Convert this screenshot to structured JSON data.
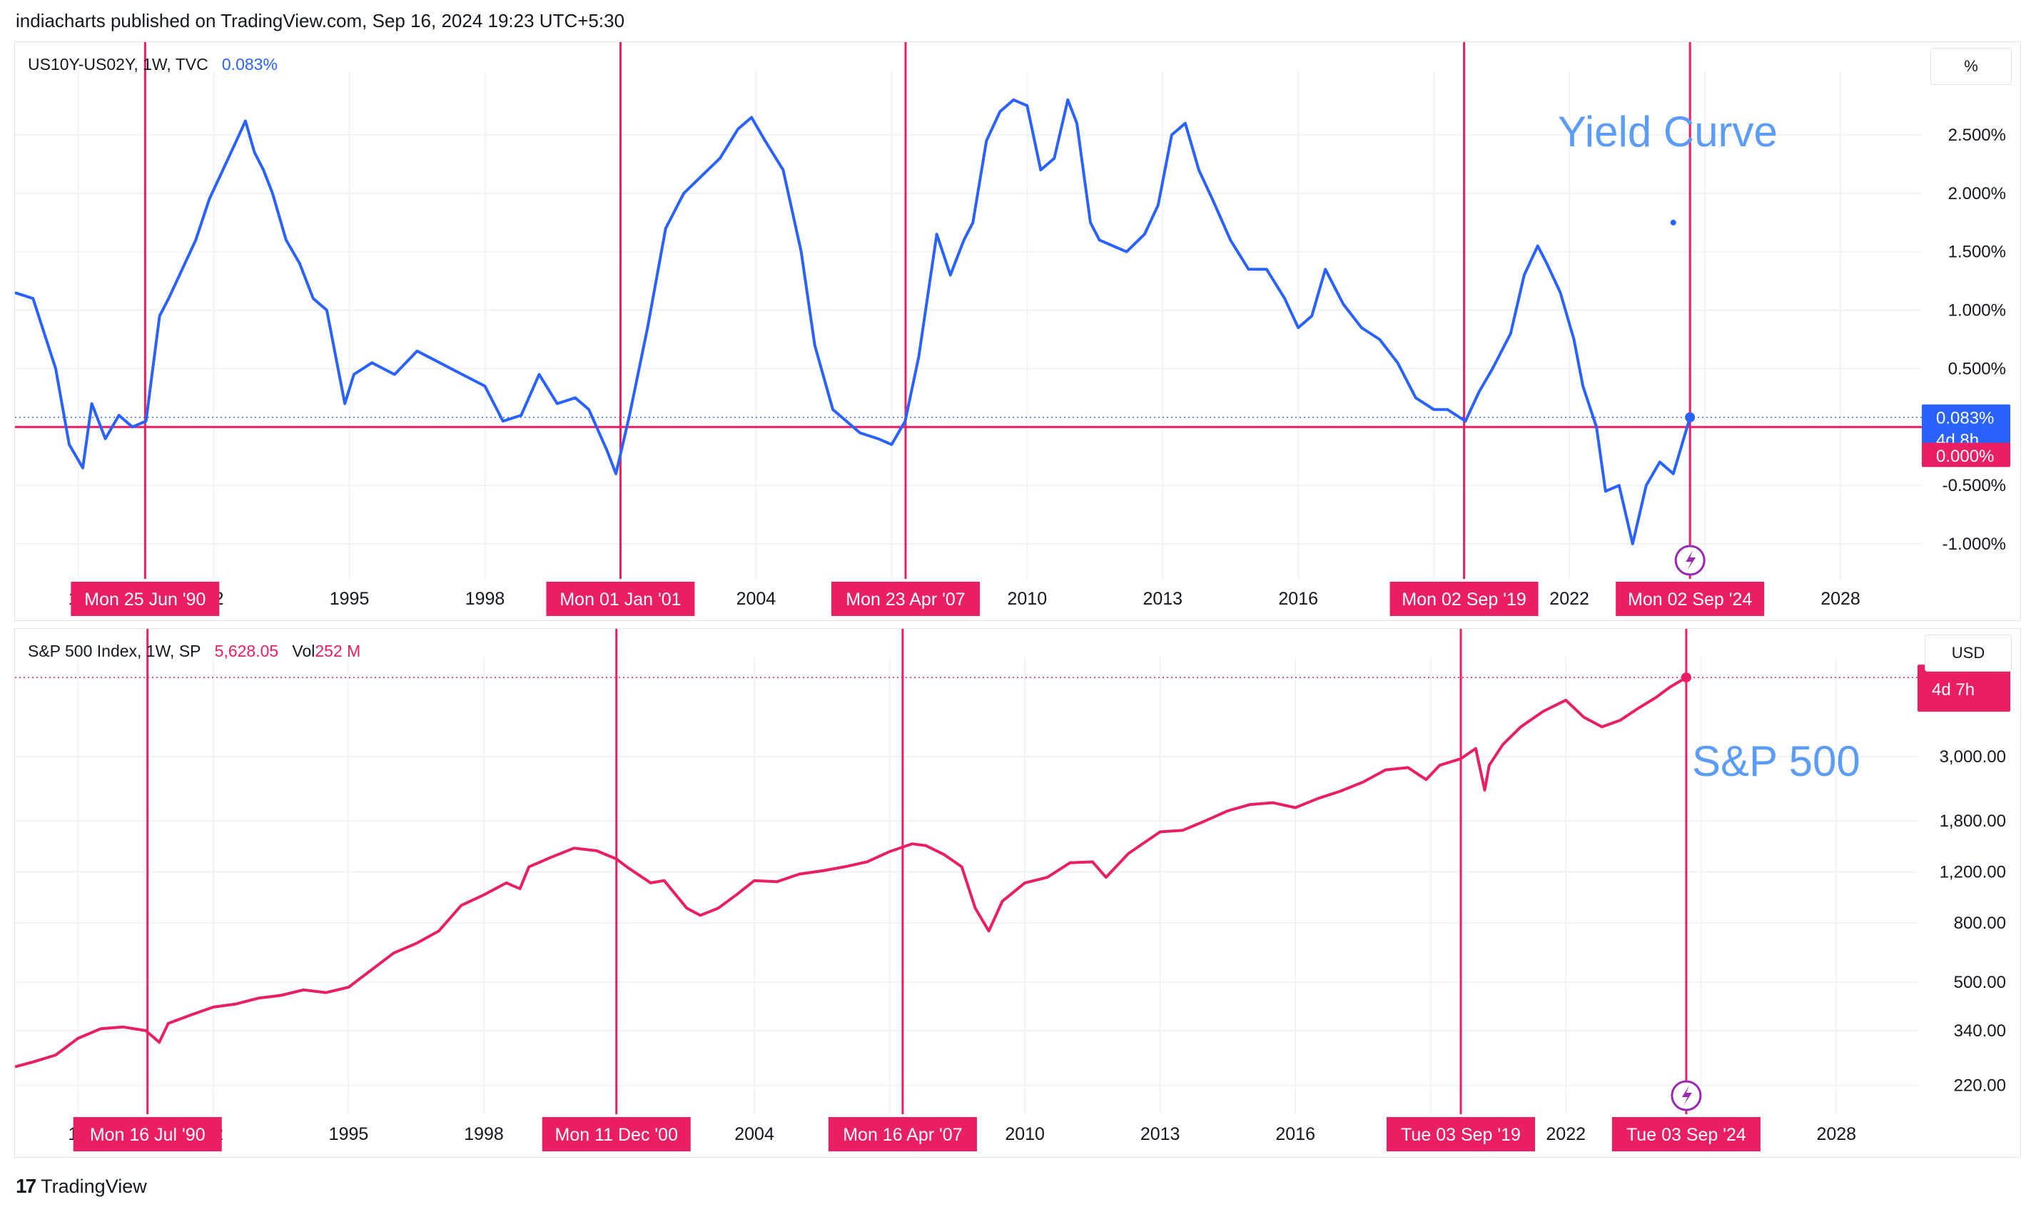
{
  "header": {
    "text": "indiacharts published on TradingView.com, Sep 16, 2024 19:23 UTC+5:30"
  },
  "footer": {
    "brand": "TradingView",
    "logo_icon": "tradingview-logo-icon"
  },
  "colors": {
    "blue": "#2962ff",
    "red": "#e91e63",
    "grid": "#f0f3fa",
    "annotation": "#5b9cf6",
    "purple": "#9c27b0"
  },
  "chart_data": [
    {
      "type": "line",
      "legend": {
        "symbol": "US10Y-US02Y, 1W, TVC",
        "value": "0.083%"
      },
      "unit_label": "%",
      "annotation": "Yield Curve",
      "y_scale": "linear",
      "ylim": [
        -1.3,
        3.05
      ],
      "xlim": [
        1987.6,
        2029.8
      ],
      "x_ticks": [
        "19",
        "92",
        "1995",
        "1998",
        "2001",
        "2004",
        "2007",
        "2010",
        "2013",
        "2016",
        "2019",
        "2022",
        "2025",
        "2028"
      ],
      "x_tick_values": [
        1989,
        1992,
        1995,
        1998,
        2001,
        2004,
        2007,
        2010,
        2013,
        2016,
        2019,
        2022,
        2025,
        2028
      ],
      "y_ticks": [
        "2.500%",
        "2.000%",
        "1.500%",
        "1.000%",
        "0.500%",
        "-0.500%",
        "-1.000%"
      ],
      "y_tick_values": [
        2.5,
        2.0,
        1.5,
        1.0,
        0.5,
        -0.5,
        -1.0
      ],
      "price_labels": [
        {
          "text": "0.083%",
          "sub": "4d 8h",
          "value": 0.083,
          "color": "#2962ff"
        },
        {
          "text": "0.000%",
          "value": 0.0,
          "color": "#e91e63"
        }
      ],
      "horizontal_line": 0.0,
      "vertical_lines": [
        {
          "x": 1990.48,
          "label": "Mon 25 Jun '90"
        },
        {
          "x": 2001.0,
          "label": "Mon 01 Jan '01"
        },
        {
          "x": 2007.31,
          "label": "Mon 23 Apr '07"
        },
        {
          "x": 2019.67,
          "label": "Mon 02 Sep '19"
        },
        {
          "x": 2024.67,
          "label": "Mon 02 Sep '24"
        }
      ],
      "series": [
        {
          "color": "#2962ff",
          "x": [
            1987.6,
            1988.0,
            1988.5,
            1988.8,
            1989.1,
            1989.3,
            1989.6,
            1989.9,
            1990.2,
            1990.5,
            1990.8,
            1991.0,
            1991.3,
            1991.6,
            1991.9,
            1992.2,
            1992.5,
            1992.7,
            1992.9,
            1993.1,
            1993.3,
            1993.6,
            1993.9,
            1994.2,
            1994.5,
            1994.9,
            1995.1,
            1995.5,
            1996.0,
            1996.5,
            1997.0,
            1997.5,
            1998.0,
            1998.4,
            1998.8,
            1999.2,
            1999.6,
            2000.0,
            2000.3,
            2000.7,
            2000.9,
            2001.2,
            2001.6,
            2002.0,
            2002.4,
            2002.8,
            2003.2,
            2003.6,
            2003.9,
            2004.2,
            2004.6,
            2005.0,
            2005.3,
            2005.7,
            2006.0,
            2006.3,
            2006.7,
            2007.0,
            2007.3,
            2007.6,
            2008.0,
            2008.3,
            2008.6,
            2008.8,
            2009.1,
            2009.4,
            2009.7,
            2010.0,
            2010.3,
            2010.6,
            2010.9,
            2011.1,
            2011.4,
            2011.6,
            2011.9,
            2012.2,
            2012.6,
            2012.9,
            2013.2,
            2013.5,
            2013.8,
            2014.1,
            2014.5,
            2014.9,
            2015.3,
            2015.7,
            2016.0,
            2016.3,
            2016.6,
            2017.0,
            2017.4,
            2017.8,
            2018.2,
            2018.6,
            2019.0,
            2019.3,
            2019.7,
            2020.0,
            2020.3,
            2020.7,
            2021.0,
            2021.3,
            2021.5,
            2021.8,
            2022.1,
            2022.3,
            2022.6,
            2022.8,
            2023.1,
            2023.4,
            2023.7,
            2024.0,
            2024.3,
            2024.67
          ],
          "values": [
            1.15,
            1.1,
            0.5,
            -0.15,
            -0.35,
            0.2,
            -0.1,
            0.1,
            0.0,
            0.05,
            0.95,
            1.1,
            1.35,
            1.6,
            1.95,
            2.2,
            2.45,
            2.62,
            2.35,
            2.2,
            2.0,
            1.6,
            1.4,
            1.1,
            1.0,
            0.2,
            0.45,
            0.55,
            0.45,
            0.65,
            0.55,
            0.45,
            0.35,
            0.05,
            0.1,
            0.45,
            0.2,
            0.25,
            0.15,
            -0.2,
            -0.4,
            0.1,
            0.85,
            1.7,
            2.0,
            2.15,
            2.3,
            2.55,
            2.65,
            2.45,
            2.2,
            1.5,
            0.7,
            0.15,
            0.05,
            -0.05,
            -0.1,
            -0.15,
            0.05,
            0.6,
            1.65,
            1.3,
            1.6,
            1.75,
            2.45,
            2.7,
            2.8,
            2.75,
            2.2,
            2.3,
            2.8,
            2.6,
            1.75,
            1.6,
            1.55,
            1.5,
            1.65,
            1.9,
            2.5,
            2.6,
            2.2,
            1.95,
            1.6,
            1.35,
            1.35,
            1.1,
            0.85,
            0.95,
            1.35,
            1.05,
            0.85,
            0.75,
            0.55,
            0.25,
            0.15,
            0.15,
            0.05,
            0.3,
            0.5,
            0.8,
            1.3,
            1.55,
            1.4,
            1.15,
            0.75,
            0.35,
            0.0,
            -0.55,
            -0.5,
            -1.0,
            -0.5,
            -0.3,
            -0.4,
            0.083
          ]
        }
      ],
      "extra_point": {
        "x": 2024.3,
        "value": 1.75
      }
    },
    {
      "type": "line",
      "legend": {
        "symbol": "S&P 500 Index, 1W, SP",
        "value": "5,628.05",
        "vol_label": "Vol",
        "vol_value": "252 M"
      },
      "unit_label": "USD",
      "annotation": "S&P 500",
      "y_scale": "log",
      "ylim": [
        175,
        6600
      ],
      "xlim": [
        1987.6,
        2029.8
      ],
      "x_ticks": [
        "19",
        "92",
        "1995",
        "1998",
        "2001",
        "2004",
        "2007",
        "2010",
        "2013",
        "2016",
        "2019",
        "2022",
        "2025",
        "2028"
      ],
      "x_tick_values": [
        1989,
        1992,
        1995,
        1998,
        2001,
        2004,
        2007,
        2010,
        2013,
        2016,
        2019,
        2022,
        2025,
        2028
      ],
      "y_ticks": [
        "3,000.00",
        "1,800.00",
        "1,200.00",
        "800.00",
        "500.00",
        "340.00",
        "220.00"
      ],
      "y_tick_values": [
        3000,
        1800,
        1200,
        800,
        500,
        340,
        220
      ],
      "price_labels": [
        {
          "text": "",
          "sub": "4d 7h",
          "value": 5628.05,
          "color": "#e91e63"
        }
      ],
      "horizontal_line": 5628.05,
      "vertical_lines": [
        {
          "x": 1990.54,
          "label": "Mon 16 Jul '90"
        },
        {
          "x": 2000.94,
          "label": "Mon 11 Dec '00"
        },
        {
          "x": 2007.29,
          "label": "Mon 16 Apr '07"
        },
        {
          "x": 2019.67,
          "label": "Tue 03 Sep '19"
        },
        {
          "x": 2024.67,
          "label": "Tue 03 Sep '24"
        }
      ],
      "series": [
        {
          "color": "#e91e63",
          "x": [
            1987.6,
            1988.0,
            1988.5,
            1989.0,
            1989.5,
            1990.0,
            1990.5,
            1990.8,
            1991.0,
            1991.5,
            1992.0,
            1992.5,
            1993.0,
            1993.5,
            1994.0,
            1994.5,
            1995.0,
            1995.5,
            1996.0,
            1996.5,
            1997.0,
            1997.5,
            1998.0,
            1998.5,
            1998.8,
            1999.0,
            1999.5,
            2000.0,
            2000.5,
            2000.94,
            2001.2,
            2001.7,
            2002.0,
            2002.5,
            2002.8,
            2003.2,
            2003.6,
            2004.0,
            2004.5,
            2005.0,
            2005.5,
            2006.0,
            2006.5,
            2007.0,
            2007.5,
            2007.8,
            2008.2,
            2008.6,
            2008.9,
            2009.2,
            2009.5,
            2010.0,
            2010.5,
            2011.0,
            2011.5,
            2011.8,
            2012.3,
            2013.0,
            2013.5,
            2014.0,
            2014.5,
            2015.0,
            2015.5,
            2016.0,
            2016.5,
            2017.0,
            2017.5,
            2018.0,
            2018.5,
            2018.9,
            2019.2,
            2019.67,
            2020.0,
            2020.2,
            2020.3,
            2020.6,
            2021.0,
            2021.5,
            2022.0,
            2022.4,
            2022.8,
            2023.2,
            2023.6,
            2024.0,
            2024.3,
            2024.67
          ],
          "values": [
            255,
            265,
            280,
            320,
            345,
            350,
            340,
            310,
            360,
            385,
            410,
            420,
            440,
            450,
            470,
            460,
            480,
            550,
            630,
            680,
            750,
            920,
            1000,
            1100,
            1050,
            1250,
            1350,
            1450,
            1420,
            1330,
            1240,
            1100,
            1120,
            900,
            850,
            900,
            1000,
            1120,
            1110,
            1180,
            1210,
            1250,
            1300,
            1410,
            1500,
            1480,
            1380,
            1250,
            900,
            750,
            950,
            1100,
            1150,
            1290,
            1300,
            1150,
            1390,
            1650,
            1670,
            1800,
            1950,
            2050,
            2080,
            2000,
            2150,
            2280,
            2450,
            2700,
            2750,
            2500,
            2800,
            2950,
            3200,
            2300,
            2800,
            3300,
            3800,
            4300,
            4700,
            4100,
            3800,
            4000,
            4400,
            4800,
            5200,
            5628.05
          ]
        }
      ]
    }
  ]
}
